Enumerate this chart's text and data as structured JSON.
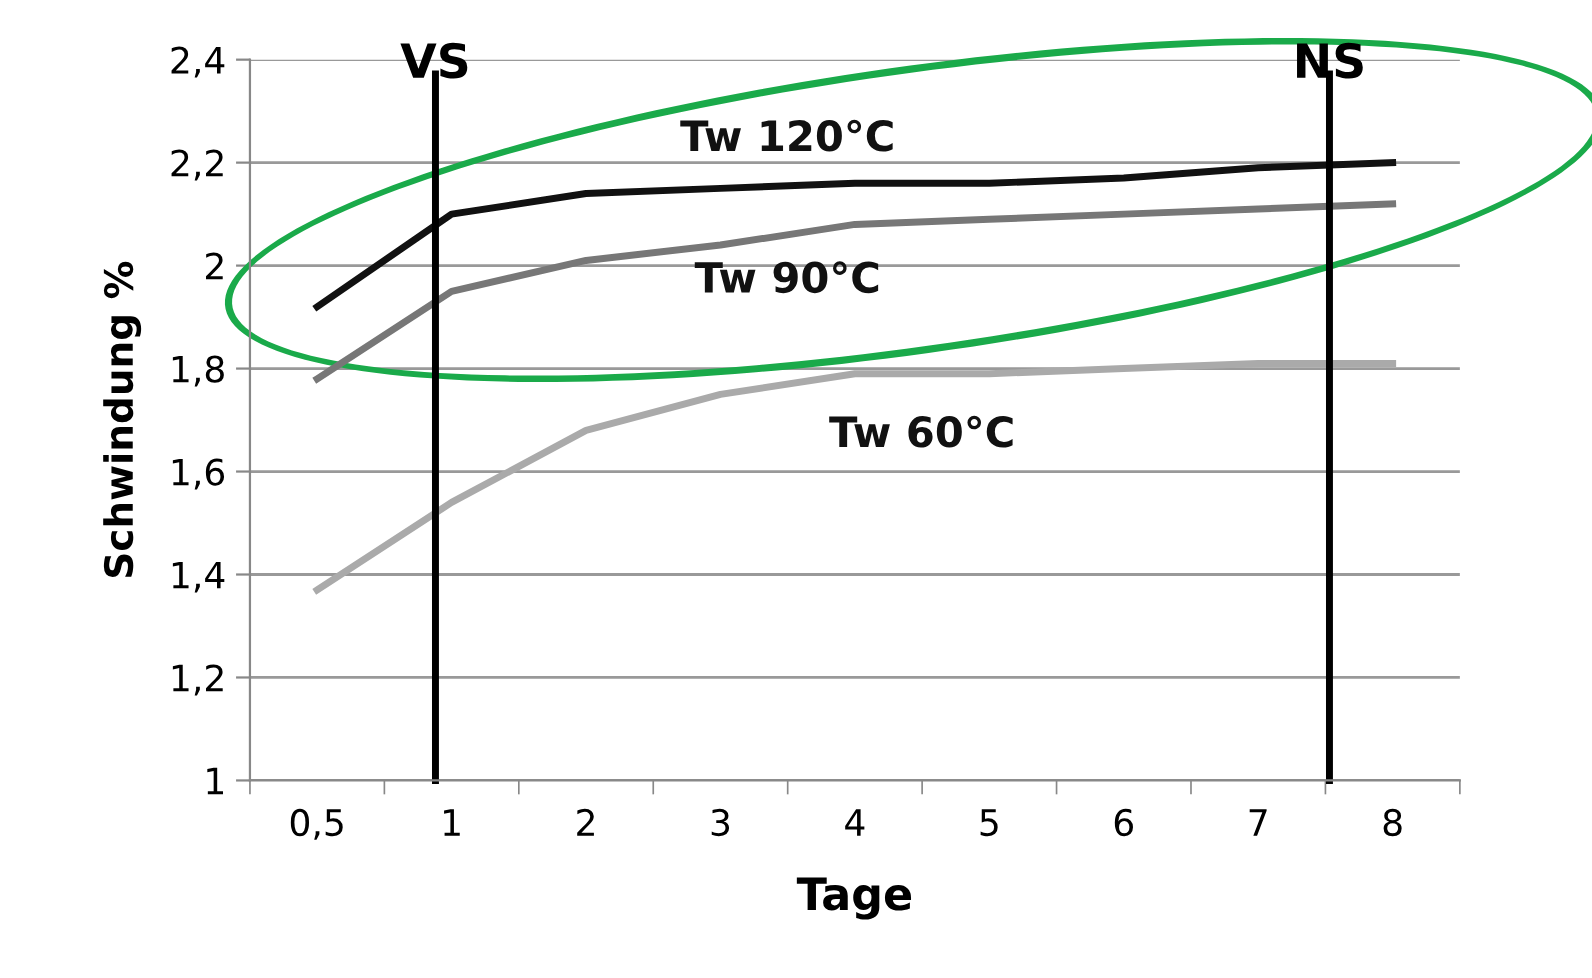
{
  "chart_data": {
    "type": "line",
    "xlabel": "Tage",
    "ylabel": "Schwindung %",
    "categories": [
      "0,5",
      "1",
      "2",
      "3",
      "4",
      "5",
      "6",
      "7",
      "8"
    ],
    "series": [
      {
        "name": "Tw 120°C",
        "color": "#111111",
        "values": [
          1.92,
          2.1,
          2.14,
          2.15,
          2.16,
          2.16,
          2.17,
          2.19,
          2.2
        ]
      },
      {
        "name": "Tw 90°C",
        "color": "#777777",
        "values": [
          1.78,
          1.95,
          2.01,
          2.04,
          2.08,
          2.09,
          2.1,
          2.11,
          2.12
        ]
      },
      {
        "name": "Tw 60°C",
        "color": "#aaaaaa",
        "values": [
          1.37,
          1.54,
          1.68,
          1.75,
          1.79,
          1.79,
          1.8,
          1.81,
          1.81
        ]
      }
    ],
    "ylim": [
      1,
      2.4
    ],
    "yticks": [
      1,
      {
        "value": 1.2,
        "label": "1,2"
      },
      {
        "value": 1.4,
        "label": "1,4"
      },
      {
        "value": 1.6,
        "label": "1,6"
      },
      {
        "value": 1.8,
        "label": "1,8"
      },
      2,
      {
        "value": 2.2,
        "label": "2,2"
      },
      {
        "value": 2.4,
        "label": "2,4"
      }
    ],
    "ref_lines": [
      {
        "axis": "x",
        "value": "1",
        "label": "VS",
        "color": "#000000"
      },
      {
        "axis": "x",
        "value": "8",
        "label": "NS",
        "color": "#000000"
      }
    ],
    "grid": "y",
    "legend": false,
    "marker": "none",
    "line_style": "solid"
  }
}
